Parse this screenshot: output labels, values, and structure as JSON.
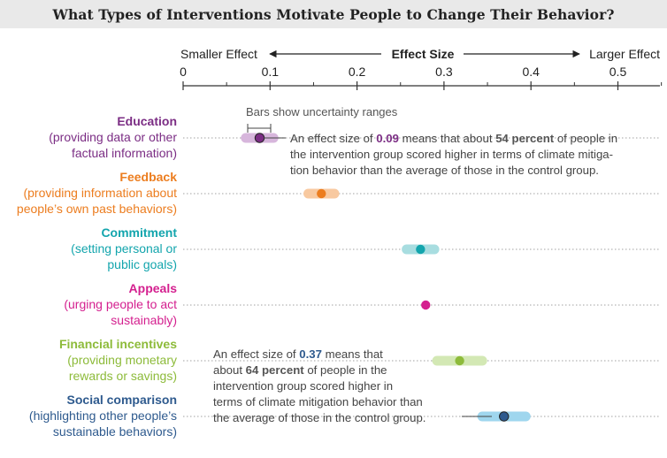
{
  "title": "What Types of Interventions Motivate People to Change Their Behavior?",
  "axis": {
    "label_left": "Smaller Effect",
    "label_center": "Effect Size",
    "label_right": "Larger Effect",
    "tick_labels": [
      "0",
      "0.1",
      "0.2",
      "0.3",
      "0.4",
      "0.5"
    ]
  },
  "uncertainty_note": "Bars show uncertainty ranges",
  "annotations": {
    "education": {
      "line1_pre": "An effect size of ",
      "line1_value": "0.09",
      "line1_mid": " means that about ",
      "line1_pct": "54 percent",
      "line1_post": " of people in",
      "line2": "the intervention group scored higher in terms of climate mitiga-",
      "line3": "tion behavior than the average of those in the control group."
    },
    "social": {
      "line1_pre": "An effect size of ",
      "line1_value": "0.37",
      "line1_post": " means that",
      "line2_pre": "about ",
      "line2_pct": "64 percent",
      "line2_post": " of people in the",
      "line3": "intervention group scored higher in",
      "line4": "terms of climate mitigation behavior than",
      "line5": "the average of those in the control group."
    }
  },
  "chart_data": {
    "type": "scatter",
    "title": "What Types of Interventions Motivate People to Change Their Behavior?",
    "xlabel": "Effect Size",
    "xlim": [
      0,
      0.55
    ],
    "xticks": [
      0,
      0.1,
      0.2,
      0.3,
      0.4,
      0.5
    ],
    "grid": false,
    "categories": [
      {
        "name": "Education",
        "sub": [
          "(providing data or other",
          "factual information)"
        ],
        "color": "#7b2d84",
        "band": "#d7b6dc",
        "value": 0.088,
        "low": 0.072,
        "high": 0.104
      },
      {
        "name": "Feedback",
        "sub": [
          "(providing information about",
          "people’s own past behaviors)"
        ],
        "color": "#ec7d1f",
        "band": "#f8c9a0",
        "value": 0.159,
        "low": 0.144,
        "high": 0.174
      },
      {
        "name": "Commitment",
        "sub": [
          "(setting personal or",
          "public goals)"
        ],
        "color": "#13a5ad",
        "band": "#a8dde0",
        "value": 0.273,
        "low": 0.257,
        "high": 0.289
      },
      {
        "name": "Appeals",
        "sub": [
          "(urging people to act",
          "sustainably)"
        ],
        "color": "#d4208f",
        "band": "#f2b3d8",
        "value": 0.279,
        "low": 0.279,
        "high": 0.279
      },
      {
        "name": "Financial incentives",
        "sub": [
          "(providing monetary",
          "rewards or savings)"
        ],
        "color": "#8dbb3a",
        "band": "#d3e8b4",
        "value": 0.318,
        "low": 0.292,
        "high": 0.344
      },
      {
        "name": "Social comparison",
        "sub": [
          "(highlighting other people’s",
          "sustainable behaviors)"
        ],
        "color": "#2e5a8e",
        "band": "#9fd6ee",
        "value": 0.369,
        "low": 0.344,
        "high": 0.394
      }
    ]
  }
}
